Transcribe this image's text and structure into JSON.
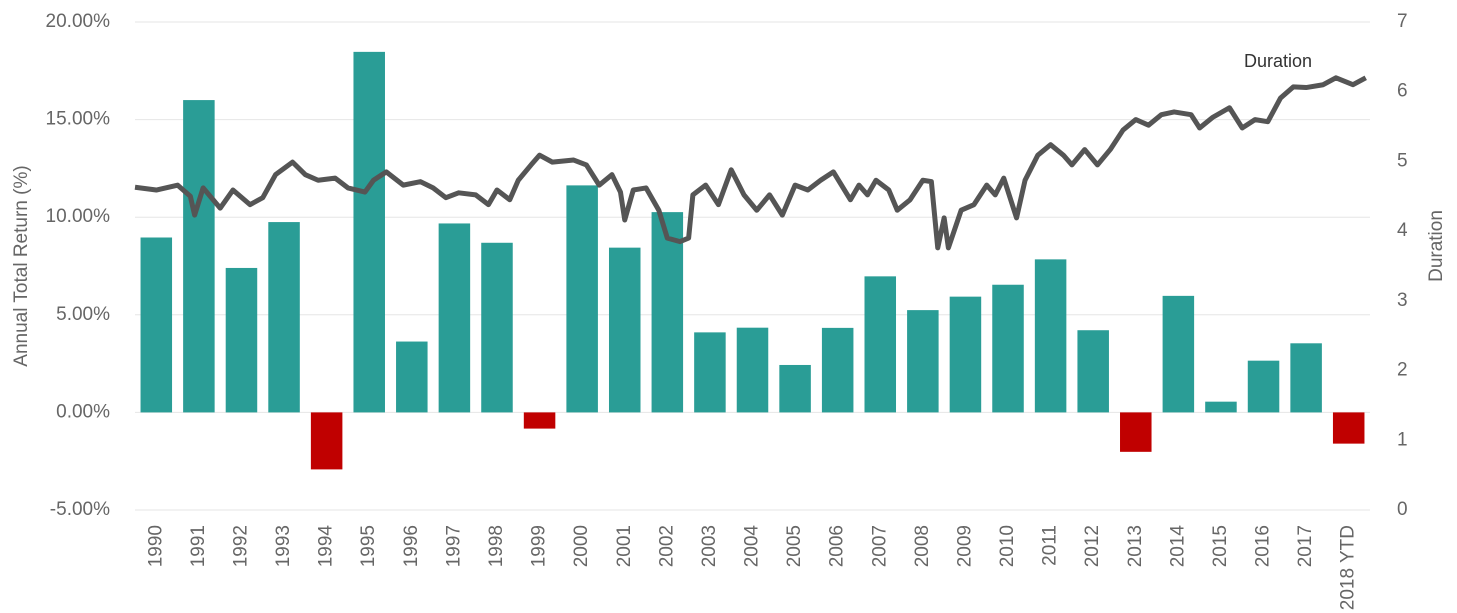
{
  "chart_data": {
    "type": "bar_line",
    "y_label": "Annual Total Return (%)",
    "y2_label": "Duration",
    "annotation": "Duration",
    "categories": [
      "1990",
      "1991",
      "1992",
      "1993",
      "1994",
      "1995",
      "1996",
      "1997",
      "1998",
      "1999",
      "2000",
      "2001",
      "2002",
      "2003",
      "2004",
      "2005",
      "2006",
      "2007",
      "2008",
      "2009",
      "2010",
      "2011",
      "2012",
      "2013",
      "2014",
      "2015",
      "2016",
      "2017",
      "2018 YTD"
    ],
    "values": [
      8.96,
      16.0,
      7.4,
      9.75,
      -2.92,
      18.47,
      3.63,
      9.68,
      8.69,
      -0.83,
      11.63,
      8.44,
      10.26,
      4.1,
      4.34,
      2.43,
      4.33,
      6.97,
      5.24,
      5.93,
      6.54,
      7.84,
      4.21,
      -2.02,
      5.97,
      0.55,
      2.65,
      3.54,
      -1.6
    ],
    "color": "#2a9d96",
    "negative_color": "#c00000",
    "line": {
      "axis": "y2",
      "color": "#555555",
      "x": [
        1990.0,
        1990.5,
        1991.0,
        1991.3,
        1991.4,
        1991.6,
        1992.0,
        1992.3,
        1992.7,
        1993.0,
        1993.3,
        1993.7,
        1994.0,
        1994.3,
        1994.7,
        1995.0,
        1995.4,
        1995.6,
        1995.9,
        1996.3,
        1996.7,
        1997.0,
        1997.3,
        1997.6,
        1998.0,
        1998.3,
        1998.5,
        1998.8,
        1999.0,
        1999.3,
        1999.5,
        1999.8,
        2000.3,
        2000.6,
        2000.9,
        2001.2,
        2001.4,
        2001.5,
        2001.7,
        2002.0,
        2002.3,
        2002.5,
        2002.8,
        2003.0,
        2003.1,
        2003.4,
        2003.7,
        2004.0,
        2004.3,
        2004.6,
        2004.9,
        2005.2,
        2005.5,
        2005.8,
        2006.1,
        2006.4,
        2006.8,
        2007.0,
        2007.2,
        2007.4,
        2007.7,
        2007.9,
        2008.2,
        2008.5,
        2008.7,
        2008.85,
        2009.0,
        2009.1,
        2009.4,
        2009.7,
        2010.0,
        2010.2,
        2010.4,
        2010.7,
        2010.9,
        2011.2,
        2011.5,
        2011.8,
        2012.0,
        2012.3,
        2012.6,
        2012.9,
        2013.2,
        2013.5,
        2013.8,
        2014.1,
        2014.4,
        2014.8,
        2015.0,
        2015.3,
        2015.7,
        2016.0,
        2016.3,
        2016.6,
        2016.9,
        2017.2,
        2017.5,
        2017.9,
        2018.2,
        2018.6,
        2018.9
      ],
      "values": [
        4.63,
        4.59,
        4.66,
        4.5,
        4.23,
        4.62,
        4.33,
        4.59,
        4.38,
        4.48,
        4.81,
        4.99,
        4.81,
        4.73,
        4.76,
        4.62,
        4.56,
        4.73,
        4.85,
        4.66,
        4.71,
        4.62,
        4.48,
        4.55,
        4.52,
        4.38,
        4.59,
        4.45,
        4.73,
        4.95,
        5.09,
        4.99,
        5.02,
        4.95,
        4.66,
        4.81,
        4.56,
        4.16,
        4.59,
        4.62,
        4.3,
        3.9,
        3.85,
        3.9,
        4.52,
        4.66,
        4.38,
        4.88,
        4.52,
        4.3,
        4.52,
        4.23,
        4.66,
        4.59,
        4.73,
        4.85,
        4.45,
        4.66,
        4.52,
        4.73,
        4.59,
        4.3,
        4.45,
        4.73,
        4.71,
        3.76,
        4.19,
        3.76,
        4.3,
        4.38,
        4.66,
        4.52,
        4.76,
        4.19,
        4.73,
        5.09,
        5.24,
        5.09,
        4.95,
        5.17,
        4.95,
        5.17,
        5.45,
        5.6,
        5.52,
        5.67,
        5.71,
        5.67,
        5.48,
        5.63,
        5.77,
        5.48,
        5.6,
        5.57,
        5.91,
        6.07,
        6.06,
        6.1,
        6.2,
        6.1,
        6.2
      ]
    },
    "ylim": [
      -5,
      20
    ],
    "yticks": [
      {
        "value": -5,
        "label": "-5.00%"
      },
      {
        "value": 0,
        "label": "0.00%"
      },
      {
        "value": 5,
        "label": "5.00%"
      },
      {
        "value": 10,
        "label": "10.00%"
      },
      {
        "value": 15,
        "label": "15.00%"
      },
      {
        "value": 20,
        "label": "20.00%"
      }
    ],
    "y2lim": [
      0,
      7
    ],
    "y2ticks": [
      0,
      1,
      2,
      3,
      4,
      5,
      6,
      7
    ],
    "grid": true
  }
}
